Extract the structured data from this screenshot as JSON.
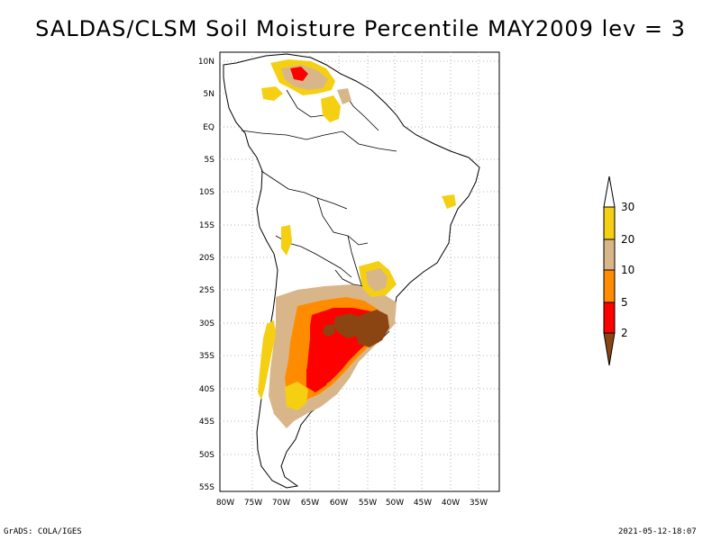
{
  "title": "SALDAS/CLSM Soil Moisture Percentile MAY2009 lev = 3",
  "footer_left": "GrADS: COLA/IGES",
  "footer_right": "2021-05-12-18:07",
  "lat_ticks": [
    "10N",
    "5N",
    "EQ",
    "5S",
    "10S",
    "15S",
    "20S",
    "25S",
    "30S",
    "35S",
    "40S",
    "45S",
    "50S",
    "55S"
  ],
  "lon_ticks": [
    "80W",
    "75W",
    "70W",
    "65W",
    "60W",
    "55W",
    "50W",
    "45W",
    "40W",
    "35W"
  ],
  "colorbar": {
    "labels": [
      "30",
      "20",
      "10",
      "5",
      "2"
    ],
    "colors": {
      "c_30_plus": "#ffffff",
      "c_20_30": "#f5cf11",
      "c_10_20": "#d9b68a",
      "c_5_10": "#ff8c00",
      "c_2_5": "#ff0000",
      "c_0_2": "#8b4513"
    }
  }
}
